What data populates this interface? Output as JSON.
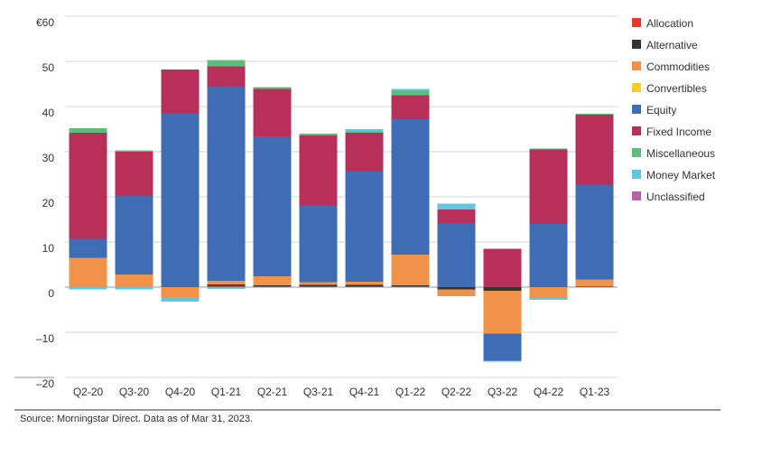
{
  "chart_data": {
    "type": "bar",
    "stacked": true,
    "title": "",
    "xlabel": "",
    "ylabel": "",
    "ylim": [
      -20,
      60
    ],
    "y_ticks": [
      {
        "value": 60,
        "label": "€60"
      },
      {
        "value": 50,
        "label": "50"
      },
      {
        "value": 40,
        "label": "40"
      },
      {
        "value": 30,
        "label": "30"
      },
      {
        "value": 20,
        "label": "20"
      },
      {
        "value": 10,
        "label": "10"
      },
      {
        "value": 0,
        "label": "0"
      },
      {
        "value": -10,
        "label": "–10"
      },
      {
        "value": -20,
        "label": "–20"
      }
    ],
    "grid": true,
    "legend_position": "right",
    "categories": [
      "Q2-20",
      "Q3-20",
      "Q4-20",
      "Q1-21",
      "Q2-21",
      "Q3-21",
      "Q4-21",
      "Q1-22",
      "Q2-22",
      "Q3-22",
      "Q4-22",
      "Q1-23"
    ],
    "series": [
      {
        "name": "Allocation",
        "color": "#e8372f",
        "values": [
          0,
          0,
          0,
          0.3,
          0.2,
          0.2,
          0.2,
          0.2,
          0.1,
          0,
          0,
          0.2
        ]
      },
      {
        "name": "Alternative",
        "color": "#333333",
        "values": [
          0,
          0,
          0,
          0.3,
          0.2,
          0.3,
          0.3,
          0.2,
          -0.5,
          -0.8,
          0,
          0
        ]
      },
      {
        "name": "Commodities",
        "color": "#f0924a",
        "values": [
          6.5,
          2.8,
          -2.2,
          0.8,
          2,
          0.6,
          0.7,
          6.8,
          -1.5,
          -9.5,
          -2.3,
          1.5
        ]
      },
      {
        "name": "Convertibles",
        "color": "#f5ce2c",
        "values": [
          0,
          0,
          0,
          0,
          0,
          0,
          0,
          0,
          0,
          0,
          0,
          0
        ]
      },
      {
        "name": "Equity",
        "color": "#3f6db5",
        "values": [
          4.2,
          17.5,
          38.5,
          43,
          31,
          17,
          24.5,
          30,
          14,
          -6,
          14,
          21
        ]
      },
      {
        "name": "Fixed Income",
        "color": "#b8305a",
        "values": [
          23.5,
          9.7,
          9.7,
          4.5,
          10.5,
          15.5,
          8.5,
          5.3,
          3.1,
          8.5,
          16.5,
          15.5
        ]
      },
      {
        "name": "Miscellaneous",
        "color": "#5bbf7a",
        "values": [
          1,
          0.3,
          0,
          1.4,
          0.4,
          0.4,
          0.3,
          1,
          0,
          0,
          0.2,
          0.2
        ]
      },
      {
        "name": "Money Market",
        "color": "#5fc8de",
        "values": [
          -0.5,
          -0.5,
          -1,
          -0.4,
          0,
          0,
          0.5,
          0.4,
          1.3,
          -0.2,
          -0.5,
          0
        ]
      },
      {
        "name": "Unclassified",
        "color": "#b565a7",
        "values": [
          0,
          0,
          0,
          0,
          0,
          0,
          0,
          0,
          0,
          0,
          0,
          0
        ]
      }
    ]
  },
  "source_note": "Source: Morningstar Direct. Data as of  Mar 31, 2023."
}
